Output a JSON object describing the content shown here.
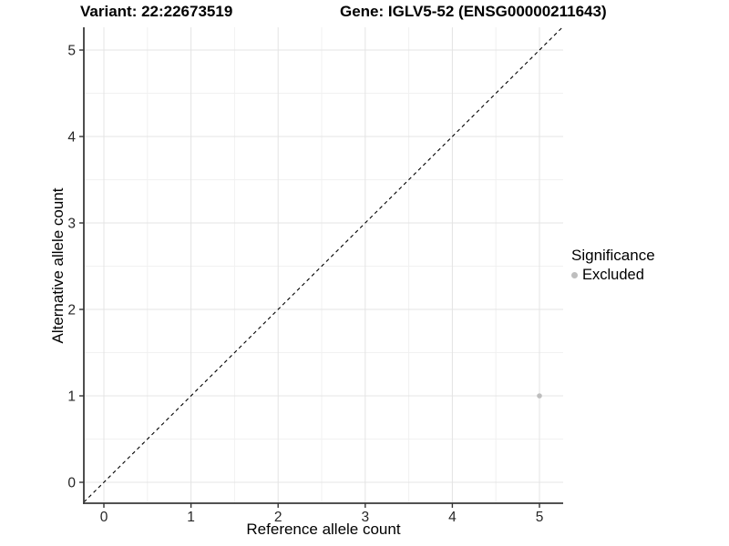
{
  "titles": {
    "variant": "Variant: 22:22673519",
    "gene": "Gene: IGLV5-52 (ENSG00000211643)"
  },
  "chart_data": {
    "type": "scatter",
    "xlabel": "Reference allele count",
    "ylabel": "Alternative allele count",
    "xlim": [
      -0.25,
      5.25
    ],
    "ylim": [
      -0.25,
      5.25
    ],
    "x_ticks": [
      0,
      1,
      2,
      3,
      4,
      5
    ],
    "y_ticks": [
      0,
      1,
      2,
      3,
      4,
      5
    ],
    "grid": {
      "major": [
        0,
        1,
        2,
        3,
        4,
        5
      ],
      "minor": [
        0.5,
        1.5,
        2.5,
        3.5,
        4.5
      ]
    },
    "abline": {
      "slope": 1,
      "intercept": 0,
      "style": "dashed",
      "color": "#000000"
    },
    "series": [
      {
        "name": "Excluded",
        "color": "#bebebe",
        "point_radius": 2.8,
        "points": [
          [
            5,
            1
          ]
        ]
      }
    ],
    "legend": {
      "title": "Significance",
      "position": "right",
      "entries": [
        {
          "label": "Excluded",
          "color": "#bebebe"
        }
      ]
    }
  },
  "colors": {
    "grid_major": "#e4e4e4",
    "grid_minor": "#f1f1f1",
    "axis_line": "#3a3a3a",
    "tick_mark": "#333333",
    "point": "#bebebe"
  }
}
